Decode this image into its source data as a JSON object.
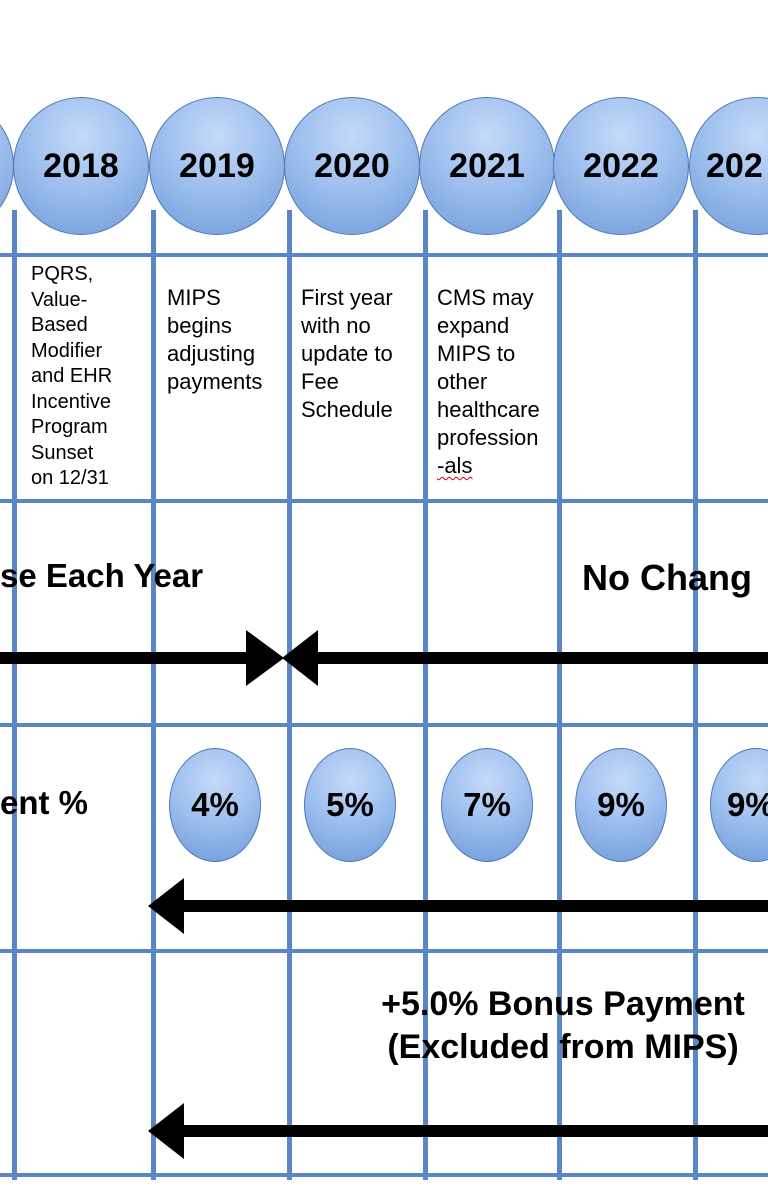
{
  "years": [
    "2018",
    "2019",
    "2020",
    "2021",
    "2022",
    "202"
  ],
  "notes": {
    "n2018": [
      "PQRS,",
      "Value-",
      "Based",
      "Modifier",
      "and EHR",
      "Incentive",
      "Program",
      "Sunset",
      "on 12/31"
    ],
    "n2019": [
      "MIPS",
      "begins",
      "adjusting",
      "payments"
    ],
    "n2020": [
      "First year",
      "with no",
      "update to",
      "Fee",
      "Schedule"
    ],
    "n2021": [
      "CMS may",
      "expand",
      "MIPS to",
      "other",
      "healthcare",
      "profession",
      "-als"
    ]
  },
  "fee_section": {
    "left_label": "se Each Year",
    "right_label": "No Chang"
  },
  "adjustment_section": {
    "label": "ent %",
    "percentages": [
      "4%",
      "5%",
      "7%",
      "9%",
      "9%"
    ]
  },
  "bonus_section": {
    "line1": "+5.0% Bonus Payment",
    "line2": "(Excluded from MIPS)"
  },
  "colors": {
    "grid_line": "#5b86c5",
    "circle_fill": "#9ec0ef",
    "arrow": "#000000",
    "spellcheck_underline": "#d0021b"
  }
}
